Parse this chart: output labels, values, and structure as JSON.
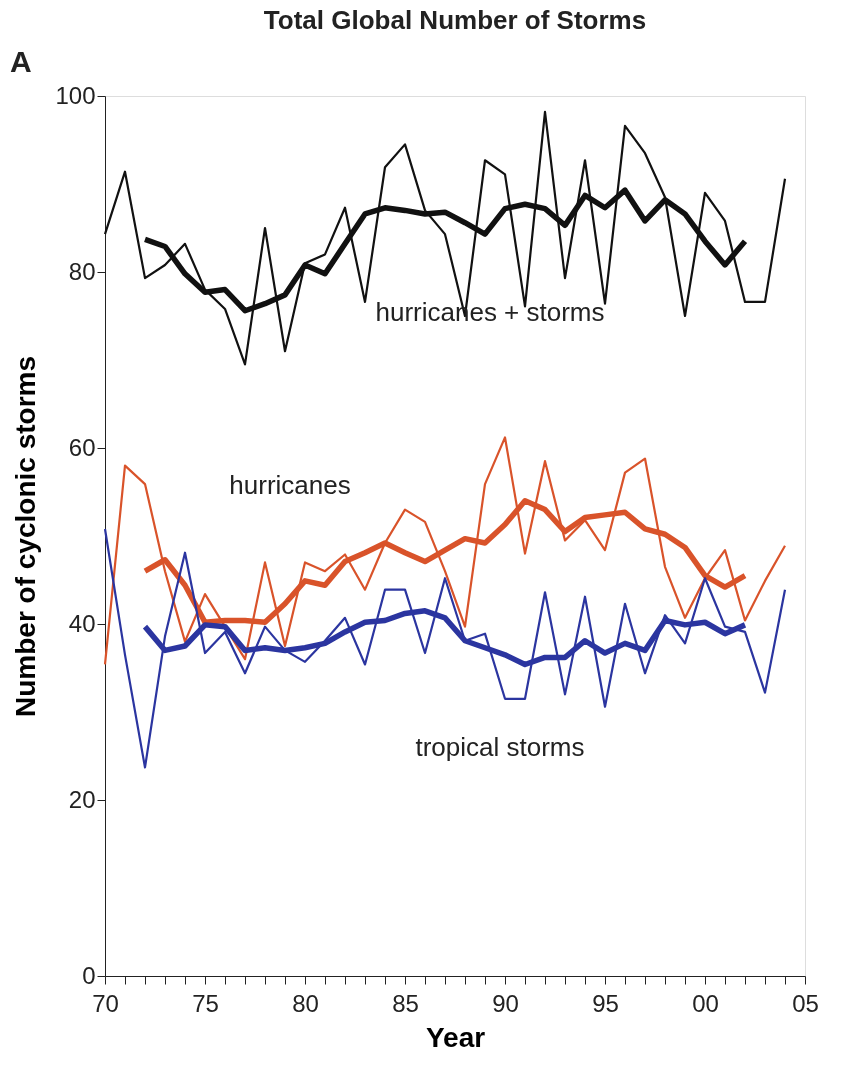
{
  "chart_data": {
    "type": "line",
    "title": "Total Global Number of Storms",
    "xlabel": "Year",
    "ylabel": "Number of cyclonic storms",
    "xlim": [
      1970,
      2005
    ],
    "ylim": [
      0,
      100
    ],
    "yticks": [
      0,
      20,
      40,
      60,
      80,
      100
    ],
    "xticks": [
      {
        "value": 1970,
        "label": "70"
      },
      {
        "value": 1971,
        "label": null
      },
      {
        "value": 1972,
        "label": null
      },
      {
        "value": 1973,
        "label": null
      },
      {
        "value": 1974,
        "label": null
      },
      {
        "value": 1975,
        "label": "75"
      },
      {
        "value": 1976,
        "label": null
      },
      {
        "value": 1977,
        "label": null
      },
      {
        "value": 1978,
        "label": null
      },
      {
        "value": 1979,
        "label": null
      },
      {
        "value": 1980,
        "label": "80"
      },
      {
        "value": 1981,
        "label": null
      },
      {
        "value": 1982,
        "label": null
      },
      {
        "value": 1983,
        "label": null
      },
      {
        "value": 1984,
        "label": null
      },
      {
        "value": 1985,
        "label": "85"
      },
      {
        "value": 1986,
        "label": null
      },
      {
        "value": 1987,
        "label": null
      },
      {
        "value": 1988,
        "label": null
      },
      {
        "value": 1989,
        "label": null
      },
      {
        "value": 1990,
        "label": "90"
      },
      {
        "value": 1991,
        "label": null
      },
      {
        "value": 1992,
        "label": null
      },
      {
        "value": 1993,
        "label": null
      },
      {
        "value": 1994,
        "label": null
      },
      {
        "value": 1995,
        "label": "95"
      },
      {
        "value": 1996,
        "label": null
      },
      {
        "value": 1997,
        "label": null
      },
      {
        "value": 1998,
        "label": null
      },
      {
        "value": 1999,
        "label": null
      },
      {
        "value": 2000,
        "label": "00"
      },
      {
        "value": 2001,
        "label": null
      },
      {
        "value": 2002,
        "label": null
      },
      {
        "value": 2003,
        "label": null
      },
      {
        "value": 2004,
        "label": null
      },
      {
        "value": 2005,
        "label": "05"
      }
    ],
    "grid": false,
    "marker": "none",
    "line_style": "solid",
    "annotations": [
      "A",
      "hurricanes + storms",
      "hurricanes",
      "tropical storms"
    ],
    "series": [
      {
        "color": "#111111",
        "x": [
          1970,
          1971,
          1972,
          1973,
          1974,
          1975,
          1976,
          1977,
          1978,
          1979,
          1980,
          1981,
          1982,
          1983,
          1984,
          1985,
          1986,
          1987,
          1988,
          1989,
          1990,
          1991,
          1992,
          1993,
          1994,
          1995,
          1996,
          1997,
          1998,
          1999,
          2000,
          2001,
          2002,
          2003,
          2004
        ],
        "values": [
          84.3,
          91.4,
          79.3,
          80.8,
          83.2,
          78,
          75.8,
          69.5,
          85,
          71,
          81,
          82,
          87.3,
          76.6,
          91.9,
          94.5,
          87,
          84.3,
          75,
          92.7,
          91.1,
          76.1,
          98.2,
          79.3,
          92.7,
          76.4,
          96.6,
          93.5,
          88.5,
          75,
          89,
          85.8,
          76.6,
          76.6,
          90.6
        ]
      },
      {
        "color": "#111111",
        "x": [
          1972,
          1973,
          1974,
          1975,
          1976,
          1977,
          1978,
          1979,
          1980,
          1981,
          1982,
          1983,
          1984,
          1985,
          1986,
          1987,
          1988,
          1989,
          1990,
          1991,
          1992,
          1993,
          1994,
          1995,
          1996,
          1997,
          1998,
          1999,
          2000,
          2001,
          2002
        ],
        "values": [
          83.7,
          82.9,
          79.8,
          77.7,
          78,
          75.6,
          76.4,
          77.4,
          80.8,
          79.8,
          83.2,
          86.6,
          87.3,
          87,
          86.6,
          86.8,
          85.6,
          84.3,
          87.2,
          87.7,
          87.2,
          85.3,
          88.7,
          87.3,
          89.3,
          85.8,
          88.2,
          86.6,
          83.5,
          80.8,
          83.5
        ]
      },
      {
        "color": "#d9532a",
        "x": [
          1970,
          1971,
          1972,
          1973,
          1974,
          1975,
          1976,
          1977,
          1978,
          1979,
          1980,
          1981,
          1982,
          1983,
          1984,
          1985,
          1986,
          1987,
          1988,
          1989,
          1990,
          1991,
          1992,
          1993,
          1994,
          1995,
          1996,
          1997,
          1998,
          1999,
          2000,
          2001,
          2002,
          2003,
          2004
        ],
        "values": [
          35.4,
          58,
          55.9,
          46,
          38,
          43.4,
          39.7,
          36,
          47,
          37.5,
          47,
          46,
          47.9,
          43.9,
          49.2,
          53,
          51.6,
          46,
          39.7,
          55.9,
          61.2,
          48,
          58.5,
          49.5,
          51.8,
          48.4,
          57.2,
          58.8,
          46.5,
          40.7,
          45.2,
          48.4,
          40.4,
          44.9,
          48.9
        ]
      },
      {
        "color": "#d9532a",
        "x": [
          1972,
          1973,
          1974,
          1975,
          1976,
          1977,
          1978,
          1979,
          1980,
          1981,
          1982,
          1983,
          1984,
          1985,
          1986,
          1987,
          1988,
          1989,
          1990,
          1991,
          1992,
          1993,
          1994,
          1995,
          1996,
          1997,
          1998,
          1999,
          2000,
          2001,
          2002
        ],
        "values": [
          46,
          47.3,
          44.4,
          40.2,
          40.4,
          40.4,
          40.2,
          42.3,
          44.9,
          44.4,
          47.1,
          48.1,
          49.2,
          48.1,
          47.1,
          48.4,
          49.7,
          49.2,
          51.3,
          54,
          53,
          50.5,
          52.1,
          52.4,
          52.7,
          50.8,
          50.2,
          48.7,
          45.5,
          44.2,
          45.5
        ]
      },
      {
        "color": "#2b35a0",
        "x": [
          1970,
          1971,
          1972,
          1973,
          1974,
          1975,
          1976,
          1977,
          1978,
          1979,
          1980,
          1981,
          1982,
          1983,
          1984,
          1985,
          1986,
          1987,
          1988,
          1989,
          1990,
          1991,
          1992,
          1993,
          1994,
          1995,
          1996,
          1997,
          1998,
          1999,
          2000,
          2001,
          2002,
          2003,
          2004
        ],
        "values": [
          50.8,
          36.5,
          23.7,
          38.6,
          48.1,
          36.7,
          39.1,
          34.4,
          39.7,
          37,
          35.7,
          38.1,
          40.7,
          35.4,
          43.9,
          43.9,
          36.7,
          45.2,
          38.1,
          38.9,
          31.5,
          31.5,
          43.6,
          32,
          43.1,
          30.6,
          42.3,
          34.4,
          41,
          37.8,
          45.2,
          39.7,
          39.1,
          32.2,
          43.9
        ]
      },
      {
        "color": "#2b35a0",
        "x": [
          1972,
          1973,
          1974,
          1975,
          1976,
          1977,
          1978,
          1979,
          1980,
          1981,
          1982,
          1983,
          1984,
          1985,
          1986,
          1987,
          1988,
          1989,
          1990,
          1991,
          1992,
          1993,
          1994,
          1995,
          1996,
          1997,
          1998,
          1999,
          2000,
          2001,
          2002
        ],
        "values": [
          39.7,
          37,
          37.5,
          39.9,
          39.7,
          37,
          37.3,
          37,
          37.3,
          37.8,
          39.1,
          40.2,
          40.4,
          41.2,
          41.5,
          40.7,
          38.1,
          37.3,
          36.5,
          35.4,
          36.2,
          36.2,
          38.1,
          36.7,
          37.8,
          37,
          40.4,
          39.9,
          40.2,
          38.9,
          39.9
        ]
      }
    ]
  }
}
